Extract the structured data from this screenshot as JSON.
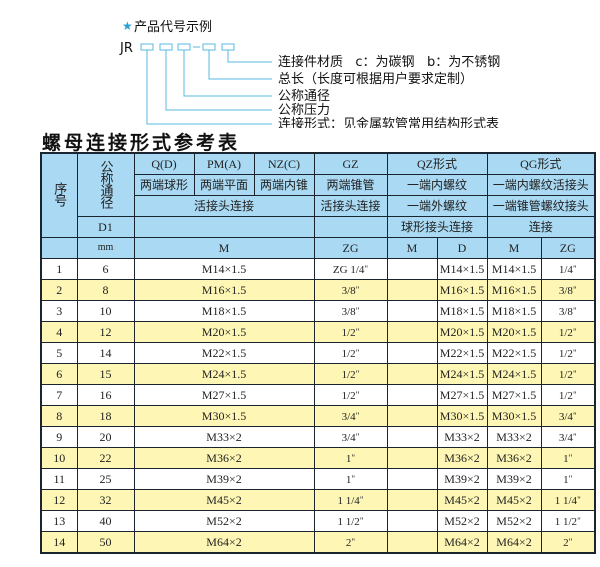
{
  "diagram": {
    "heading": "产品代号示例",
    "code_prefix": "JR",
    "labels": [
      "连接件材质   c：为碳钢   b：为不锈钢",
      "总长（长度可根据用户要求定制）",
      "公称通径",
      "公称压力",
      "连接形式：见金属软管常用结构形式表"
    ],
    "accent": "#2a9fd6"
  },
  "table_title": "螺母连接形式参考表",
  "header": {
    "seq": "序号",
    "dn": "公称通径",
    "d1": "D1",
    "mm": "mm",
    "q": "Q(D)",
    "pm": "PM(A)",
    "nz": "NZ(C)",
    "gz": "GZ",
    "qz": "QZ形式",
    "qg": "QG形式",
    "q_desc": "两端球形",
    "pm_desc": "两端平面",
    "nz_desc": "两端内锥",
    "gz_desc": "两端锥管",
    "qz_desc1": "一端内螺纹",
    "qg_desc1": "一端内螺纹活接头",
    "hj1": "活接头连接",
    "hj2": "活接头连接",
    "qz_desc2": "一端外螺纹",
    "qg_desc2": "一端锥管螺纹接头",
    "qz_desc3": "球形接头连接",
    "qg_desc3": "连接",
    "m": "M",
    "zg": "ZG",
    "qz_m": "M",
    "qz_d": "D",
    "qg_m": "M",
    "qg_zg": "ZG"
  },
  "rows": [
    {
      "seq": "1",
      "dn": "6",
      "m": "M14×1.5",
      "zg": "ZG 1/4",
      "qz_m": "",
      "qz_d": "M14×1.5",
      "qg_m": "M14×1.5",
      "qg_zg": "1/4"
    },
    {
      "seq": "2",
      "dn": "8",
      "m": "M16×1.5",
      "zg": "3/8",
      "qz_m": "",
      "qz_d": "M16×1.5",
      "qg_m": "M16×1.5",
      "qg_zg": "3/8"
    },
    {
      "seq": "3",
      "dn": "10",
      "m": "M18×1.5",
      "zg": "3/8",
      "qz_m": "",
      "qz_d": "M18×1.5",
      "qg_m": "M18×1.5",
      "qg_zg": "3/8"
    },
    {
      "seq": "4",
      "dn": "12",
      "m": "M20×1.5",
      "zg": "1/2",
      "qz_m": "",
      "qz_d": "M20×1.5",
      "qg_m": "M20×1.5",
      "qg_zg": "1/2"
    },
    {
      "seq": "5",
      "dn": "14",
      "m": "M22×1.5",
      "zg": "1/2",
      "qz_m": "",
      "qz_d": "M22×1.5",
      "qg_m": "M22×1.5",
      "qg_zg": "1/2"
    },
    {
      "seq": "6",
      "dn": "15",
      "m": "M24×1.5",
      "zg": "1/2",
      "qz_m": "",
      "qz_d": "M24×1.5",
      "qg_m": "M24×1.5",
      "qg_zg": "1/2"
    },
    {
      "seq": "7",
      "dn": "16",
      "m": "M27×1.5",
      "zg": "1/2",
      "qz_m": "",
      "qz_d": "M27×1.5",
      "qg_m": "M27×1.5",
      "qg_zg": "1/2"
    },
    {
      "seq": "8",
      "dn": "18",
      "m": "M30×1.5",
      "zg": "3/4",
      "qz_m": "",
      "qz_d": "M30×1.5",
      "qg_m": "M30×1.5",
      "qg_zg": "3/4"
    },
    {
      "seq": "9",
      "dn": "20",
      "m": "M33×2",
      "zg": "3/4",
      "qz_m": "",
      "qz_d": "M33×2",
      "qg_m": "M33×2",
      "qg_zg": "3/4"
    },
    {
      "seq": "10",
      "dn": "22",
      "m": "M36×2",
      "zg": "1",
      "qz_m": "",
      "qz_d": "M36×2",
      "qg_m": "M36×2",
      "qg_zg": "1"
    },
    {
      "seq": "11",
      "dn": "25",
      "m": "M39×2",
      "zg": "1",
      "qz_m": "",
      "qz_d": "M39×2",
      "qg_m": "M39×2",
      "qg_zg": "1"
    },
    {
      "seq": "12",
      "dn": "32",
      "m": "M45×2",
      "zg": "1 1/4",
      "qz_m": "",
      "qz_d": "M45×2",
      "qg_m": "M45×2",
      "qg_zg": "1 1/4"
    },
    {
      "seq": "13",
      "dn": "40",
      "m": "M52×2",
      "zg": "1 1/2",
      "qz_m": "",
      "qz_d": "M52×2",
      "qg_m": "M52×2",
      "qg_zg": "1 1/2"
    },
    {
      "seq": "14",
      "dn": "50",
      "m": "M64×2",
      "zg": "2",
      "qz_m": "",
      "qz_d": "M64×2",
      "qg_m": "M64×2",
      "qg_zg": "2"
    }
  ],
  "colors": {
    "header_bg": "#a9d9f3",
    "even_row_bg": "#fdf6b4",
    "odd_row_bg": "#ffffff",
    "border": "#1a2530"
  }
}
